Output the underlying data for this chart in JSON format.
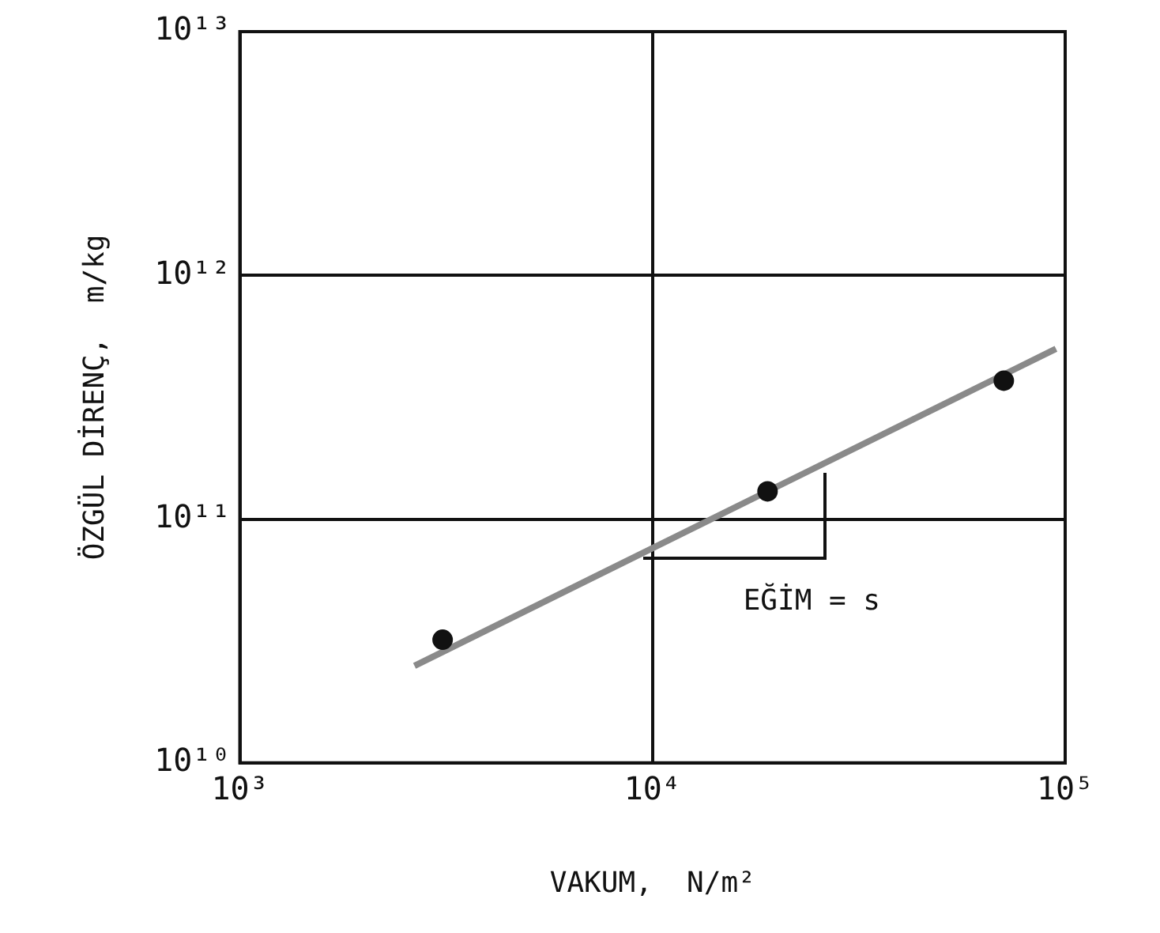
{
  "chart_data": {
    "type": "scatter",
    "xlabel": "VAKUM,  N/m²",
    "ylabel": "ÖZGÜL DİRENÇ,  m/kg",
    "log": "xy",
    "grid": true,
    "legend": false,
    "marker": "circle",
    "xlim": [
      1000,
      100000
    ],
    "xticks": [
      {
        "value": 1000,
        "label": "10³"
      },
      {
        "value": 10000,
        "label": "10⁴"
      },
      {
        "value": 100000,
        "label": "10⁵"
      }
    ],
    "ylim": [
      10000000000,
      10000000000000
    ],
    "yticks": [
      {
        "value": 10000000000,
        "label": "10¹⁰"
      },
      {
        "value": 100000000000,
        "label": "10¹¹"
      },
      {
        "value": 1000000000000,
        "label": "10¹²"
      },
      {
        "value": 10000000000000,
        "label": "10¹³"
      }
    ],
    "series": [
      {
        "color": "#111111",
        "x": [
          3100,
          19000,
          71000
        ],
        "values": [
          32000000000,
          130000000000,
          370000000000
        ]
      },
      {
        "type": "line",
        "color": "#8a8a8a",
        "marker": "none",
        "x": [
          2650,
          95000
        ],
        "values": [
          25000000000,
          500000000000
        ]
      }
    ],
    "annotations": [
      "EĞİM = s"
    ]
  }
}
